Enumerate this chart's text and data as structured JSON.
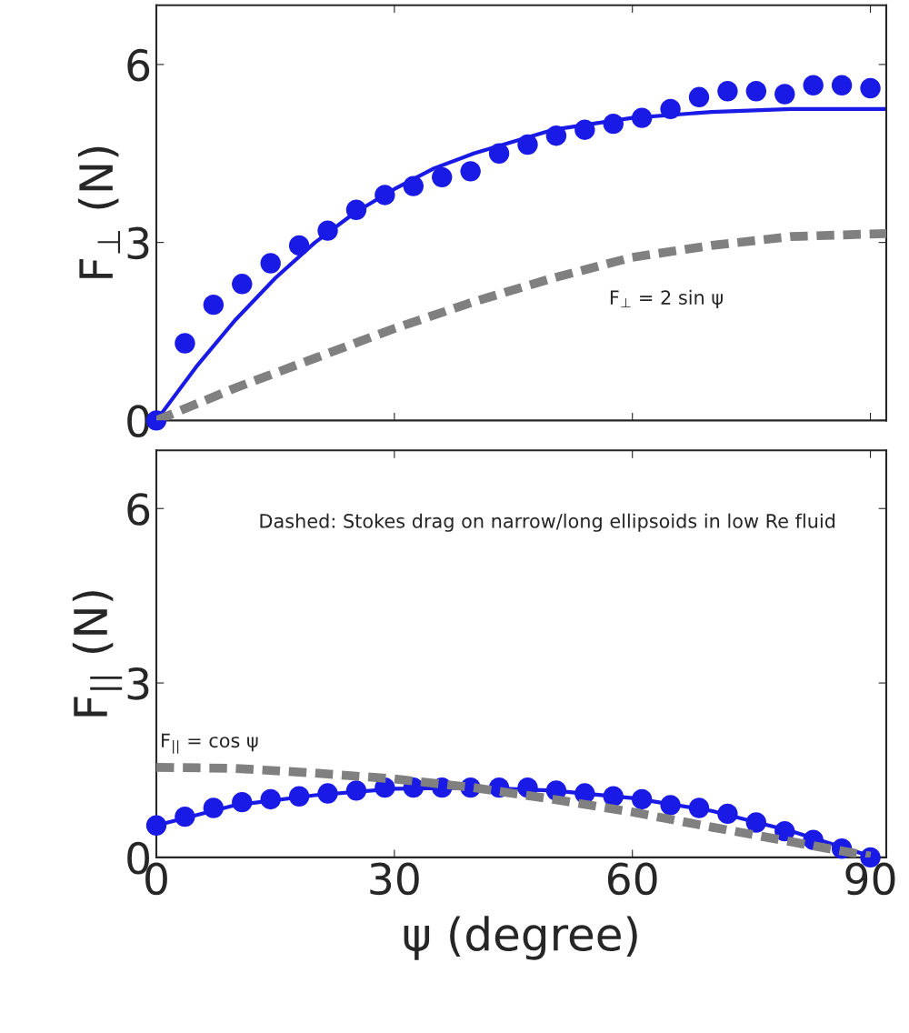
{
  "chart_data": [
    {
      "type": "line",
      "ylabel": "F$_{⊥}$ (N)",
      "xlim": [
        0,
        92
      ],
      "ylim": [
        0,
        7
      ],
      "xticks": [
        0,
        30,
        60,
        90
      ],
      "yticks": [
        0,
        3,
        6
      ],
      "tick_labels": "y",
      "grid": false,
      "annotations": [
        "F$_{⊥}$ = 2 sin ψ"
      ],
      "series": [
        {
          "type": "scatter",
          "color": "#1a1ae6",
          "marker": "circle",
          "x": [
            0,
            3.6,
            7.2,
            10.8,
            14.4,
            18,
            21.6,
            25.2,
            28.8,
            32.4,
            36,
            39.6,
            43.2,
            46.8,
            50.4,
            54,
            57.6,
            61.2,
            64.8,
            68.4,
            72,
            75.6,
            79.2,
            82.8,
            86.4,
            90
          ],
          "values": [
            0,
            1.3,
            1.95,
            2.3,
            2.65,
            2.95,
            3.2,
            3.55,
            3.8,
            3.95,
            4.1,
            4.2,
            4.5,
            4.65,
            4.8,
            4.9,
            5.0,
            5.1,
            5.25,
            5.45,
            5.55,
            5.55,
            5.5,
            5.65,
            5.65,
            5.6
          ]
        },
        {
          "type": "line",
          "color": "#1a1ae6",
          "line_style": "solid",
          "x": [
            0,
            5,
            10,
            15,
            20,
            25,
            30,
            35,
            40,
            45,
            50,
            55,
            60,
            70,
            80,
            92
          ],
          "values": [
            0,
            0.9,
            1.7,
            2.4,
            3.0,
            3.5,
            3.9,
            4.25,
            4.5,
            4.7,
            4.9,
            5.0,
            5.1,
            5.2,
            5.25,
            5.25
          ]
        },
        {
          "type": "line",
          "color": "#808080",
          "line_style": "dashed",
          "x": [
            0,
            10,
            20,
            30,
            40,
            50,
            60,
            70,
            80,
            92
          ],
          "values": [
            0,
            0.55,
            1.05,
            1.55,
            2.0,
            2.4,
            2.75,
            2.95,
            3.1,
            3.15
          ]
        }
      ]
    },
    {
      "type": "line",
      "ylabel": "F$_{||}$ (N)",
      "xlabel": "ψ (degree)",
      "xlim": [
        0,
        92
      ],
      "ylim": [
        0,
        7
      ],
      "xticks": [
        0,
        30,
        60,
        90
      ],
      "yticks": [
        0,
        3,
        6
      ],
      "grid": false,
      "annotations": [
        "Dashed: Stokes drag on narrow/long ellipsoids in low Re fluid",
        "F$_{||}$ = cos ψ"
      ],
      "series": [
        {
          "type": "scatter",
          "color": "#1a1ae6",
          "marker": "circle",
          "x": [
            0,
            3.6,
            7.2,
            10.8,
            14.4,
            18,
            21.6,
            25.2,
            28.8,
            32.4,
            36,
            39.6,
            43.2,
            46.8,
            50.4,
            54,
            57.6,
            61.2,
            64.8,
            68.4,
            72,
            75.6,
            79.2,
            82.8,
            86.4,
            90
          ],
          "values": [
            0.55,
            0.7,
            0.85,
            0.95,
            1.0,
            1.05,
            1.1,
            1.15,
            1.2,
            1.2,
            1.2,
            1.2,
            1.2,
            1.2,
            1.15,
            1.1,
            1.05,
            1.0,
            0.9,
            0.85,
            0.75,
            0.6,
            0.45,
            0.3,
            0.15,
            0.0
          ]
        },
        {
          "type": "line",
          "color": "#1a1ae6",
          "line_style": "solid",
          "x": [
            0,
            10,
            20,
            30,
            40,
            50,
            60,
            70,
            80,
            90
          ],
          "values": [
            0.55,
            0.9,
            1.07,
            1.18,
            1.2,
            1.15,
            1.02,
            0.8,
            0.45,
            0.02
          ]
        },
        {
          "type": "line",
          "color": "#808080",
          "line_style": "dashed",
          "x": [
            0,
            10,
            20,
            30,
            40,
            50,
            60,
            70,
            80,
            90
          ],
          "values": [
            1.55,
            1.53,
            1.45,
            1.35,
            1.2,
            1.0,
            0.78,
            0.52,
            0.27,
            0.02
          ]
        }
      ]
    }
  ]
}
